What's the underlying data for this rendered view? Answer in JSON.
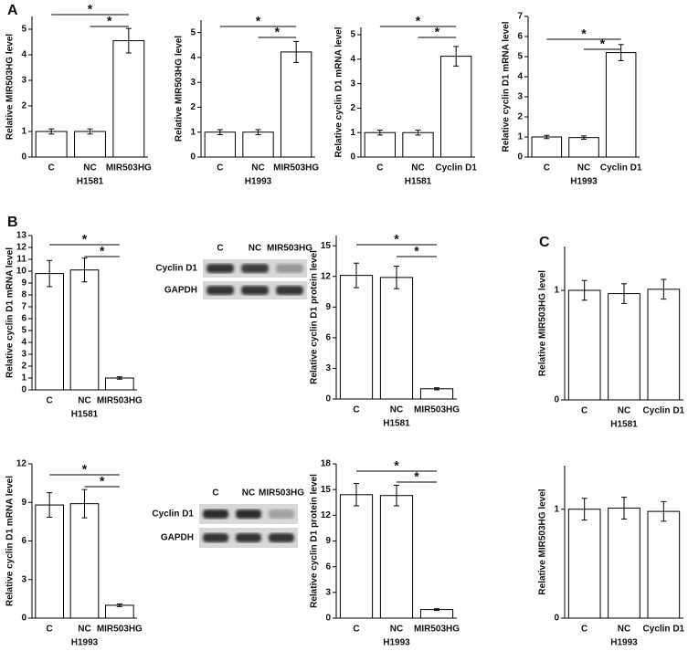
{
  "panel_labels": [
    "A",
    "B",
    "C"
  ],
  "chart_data": [
    {
      "type": "bar",
      "ylabel": "Relative MIR503HG level",
      "xlabel": "H1581",
      "categories": [
        "C",
        "NC",
        "MIR503HG"
      ],
      "values": [
        1.0,
        1.0,
        4.55
      ],
      "errors": [
        0.1,
        0.1,
        0.48
      ],
      "ylim": [
        0,
        5.5
      ],
      "yticks": [
        0,
        1,
        2,
        3,
        4,
        5
      ],
      "annotations": [
        "*",
        "*"
      ]
    },
    {
      "type": "bar",
      "ylabel": "Relative MIR503HG level",
      "xlabel": "H1993",
      "categories": [
        "C",
        "NC",
        "MIR503HG"
      ],
      "values": [
        1.0,
        1.0,
        4.22
      ],
      "errors": [
        0.1,
        0.1,
        0.42
      ],
      "ylim": [
        0,
        5.5
      ],
      "yticks": [
        0,
        1,
        2,
        3,
        4,
        5
      ],
      "annotations": [
        "*",
        "*"
      ]
    },
    {
      "type": "bar",
      "ylabel": "Relative cyclin D1 mRNA level",
      "xlabel": "H1581",
      "categories": [
        "C",
        "NC",
        "Cyclin D1"
      ],
      "values": [
        1.0,
        1.0,
        4.12
      ],
      "errors": [
        0.1,
        0.1,
        0.4
      ],
      "ylim": [
        0,
        5.3
      ],
      "yticks": [
        0,
        1,
        2,
        3,
        4,
        5
      ],
      "annotations": [
        "*",
        "*"
      ]
    },
    {
      "type": "bar",
      "ylabel": "Relative cyclin D1 mRNA level",
      "xlabel": "H1993",
      "categories": [
        "C",
        "NC",
        "Cyclin D1"
      ],
      "values": [
        1.0,
        0.97,
        5.2
      ],
      "errors": [
        0.08,
        0.08,
        0.4
      ],
      "ylim": [
        0,
        7
      ],
      "yticks": [
        0,
        1,
        2,
        3,
        4,
        5,
        6,
        7
      ],
      "annotations": [
        "*",
        "*"
      ]
    },
    {
      "type": "bar",
      "ylabel": "Relative cyclin D1 mRNA level",
      "xlabel": "H1581",
      "categories": [
        "C",
        "NC",
        "MIR503HG"
      ],
      "values": [
        9.8,
        10.1,
        1.0
      ],
      "errors": [
        1.1,
        1.0,
        0.1
      ],
      "ylim": [
        0,
        13
      ],
      "yticks": [
        0,
        1,
        2,
        3,
        4,
        5,
        6,
        7,
        8,
        9,
        10,
        11,
        12,
        13
      ],
      "annotations": [
        "*",
        "*"
      ]
    },
    {
      "type": "bar",
      "ylabel": "Relative cyclin D1 protein level",
      "xlabel": "H1581",
      "categories": [
        "C",
        "NC",
        "MIR503HG"
      ],
      "values": [
        12.1,
        11.9,
        1.0
      ],
      "errors": [
        1.2,
        1.1,
        0.1
      ],
      "ylim": [
        0,
        16
      ],
      "yticks": [
        0,
        3,
        6,
        9,
        12,
        15
      ],
      "annotations": [
        "*",
        "*"
      ]
    },
    {
      "type": "bar",
      "ylabel": "Relative cyclin D1 mRNA level",
      "xlabel": "H1993",
      "categories": [
        "C",
        "NC",
        "MIR503HG"
      ],
      "values": [
        8.8,
        8.9,
        1.0
      ],
      "errors": [
        0.95,
        1.1,
        0.1
      ],
      "ylim": [
        0,
        12
      ],
      "yticks": [
        0,
        3,
        6,
        9,
        12
      ],
      "annotations": [
        "*",
        "*"
      ]
    },
    {
      "type": "bar",
      "ylabel": "Relative cyclin D1 protein level",
      "xlabel": "H1993",
      "categories": [
        "C",
        "NC",
        "MIR503HG"
      ],
      "values": [
        14.4,
        14.3,
        1.0
      ],
      "errors": [
        1.3,
        1.2,
        0.1
      ],
      "ylim": [
        0,
        18
      ],
      "yticks": [
        0,
        3,
        6,
        9,
        12,
        15,
        18
      ],
      "annotations": [
        "*",
        "*"
      ]
    },
    {
      "type": "bar",
      "ylabel": "Relative MIR503HG level",
      "xlabel": "H1581",
      "categories": [
        "C",
        "NC",
        "Cyclin D1"
      ],
      "values": [
        1.0,
        0.97,
        1.01
      ],
      "errors": [
        0.09,
        0.09,
        0.09
      ],
      "ylim": [
        0,
        1.4
      ],
      "yticks": [
        0,
        1
      ]
    },
    {
      "type": "bar",
      "ylabel": "Relative MIR503HG level",
      "xlabel": "H1993",
      "categories": [
        "C",
        "NC",
        "Cyclin D1"
      ],
      "values": [
        1.0,
        1.01,
        0.98
      ],
      "errors": [
        0.1,
        0.1,
        0.09
      ],
      "ylim": [
        0,
        1.4
      ],
      "yticks": [
        0,
        1
      ]
    }
  ],
  "blots": [
    {
      "lanes": [
        "C",
        "NC",
        "MIR503HG"
      ],
      "rows": [
        "Cyclin D1",
        "GAPDH"
      ]
    },
    {
      "lanes": [
        "C",
        "NC",
        "MIR503HG"
      ],
      "rows": [
        "Cyclin D1",
        "GAPDH"
      ]
    }
  ]
}
